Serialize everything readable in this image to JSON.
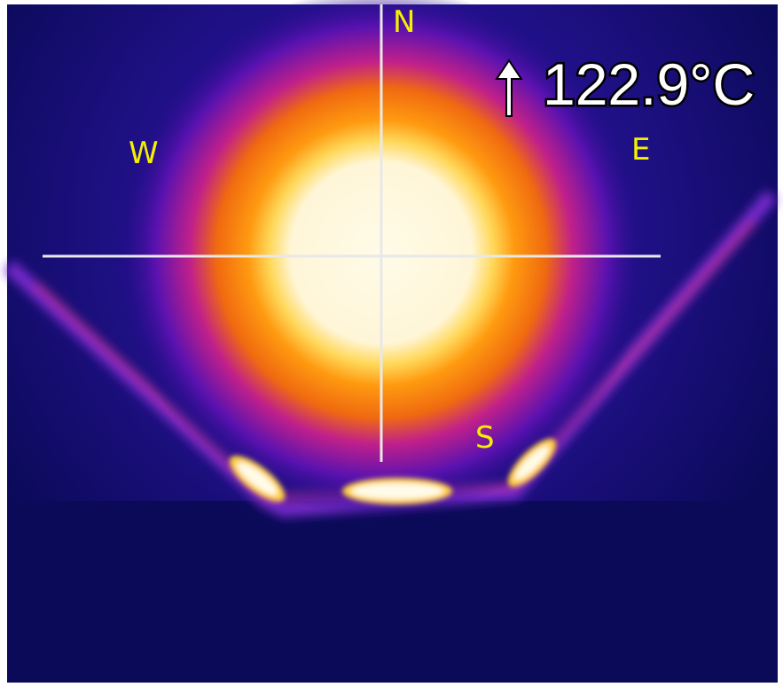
{
  "labels": {
    "north": "N",
    "west": "W",
    "east": "E",
    "south": "S"
  },
  "temperature": "122.9°C"
}
